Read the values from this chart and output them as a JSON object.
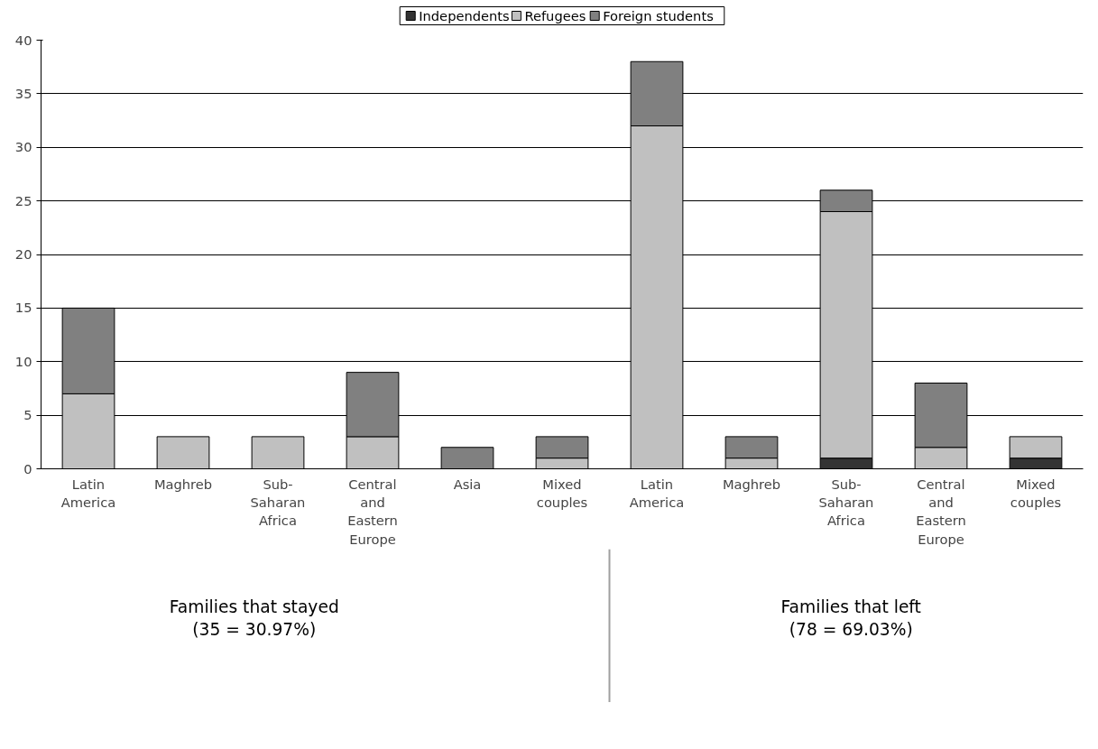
{
  "chart_data": {
    "type": "bar",
    "stacked": true,
    "categories": [
      "Latin America",
      "Maghreb",
      "Sub-Saharan Africa",
      "Central and Eastern Europe",
      "Asia",
      "Mixed couples",
      "Latin America",
      "Maghreb",
      "Sub-Saharan Africa",
      "Central and Eastern Europe",
      "Mixed couples"
    ],
    "series": [
      {
        "name": "Independents",
        "color": "#333333",
        "values": [
          0,
          0,
          0,
          0,
          0,
          0,
          0,
          0,
          1,
          0,
          1
        ]
      },
      {
        "name": "Refugees",
        "color": "#c0c0c0",
        "values": [
          7,
          3,
          3,
          3,
          0,
          1,
          32,
          1,
          23,
          2,
          2
        ]
      },
      {
        "name": "Foreign students",
        "color": "#808080",
        "values": [
          8,
          0,
          0,
          6,
          2,
          2,
          6,
          2,
          2,
          6,
          0
        ]
      }
    ],
    "ylim": [
      0,
      40
    ],
    "yticks": [
      0,
      5,
      10,
      15,
      20,
      25,
      30,
      35,
      40
    ],
    "grid": "y",
    "legend": "top",
    "annotations": [
      "Families that stayed\n(35 = 30.97%)",
      "Families that left\n(78 = 69.03%)"
    ]
  }
}
